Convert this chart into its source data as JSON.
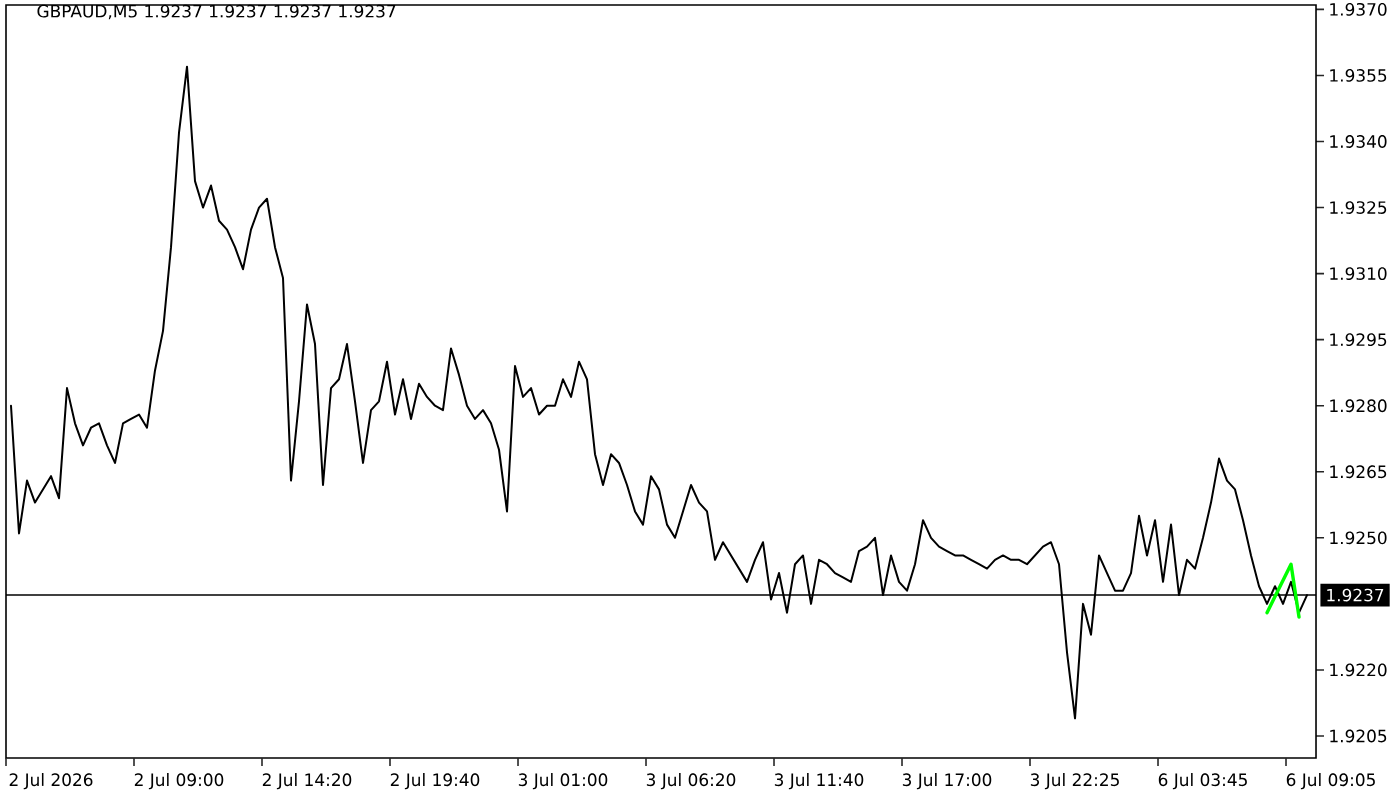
{
  "chart_data": {
    "type": "line",
    "title": "GBPAUD,M5  1.9237 1.9237 1.9237 1.9237",
    "categories": [
      null,
      null,
      null,
      null,
      null,
      "2 Jul 2026",
      null,
      null,
      null,
      null,
      null,
      null,
      null,
      null,
      null,
      null,
      null,
      null,
      null,
      null,
      null,
      "2 Jul 09:00",
      null,
      null,
      null,
      null,
      null,
      null,
      null,
      null,
      null,
      null,
      null,
      null,
      null,
      null,
      null,
      "2 Jul 14:20",
      null,
      null,
      null,
      null,
      null,
      null,
      null,
      null,
      null,
      null,
      null,
      null,
      null,
      null,
      null,
      "2 Jul 19:40",
      null,
      null,
      null,
      null,
      null,
      null,
      null,
      null,
      null,
      null,
      null,
      null,
      null,
      null,
      null,
      "3 Jul 01:00",
      null,
      null,
      null,
      null,
      null,
      null,
      null,
      null,
      null,
      null,
      null,
      null,
      null,
      null,
      null,
      "3 Jul 06:20",
      null,
      null,
      null,
      null,
      null,
      null,
      null,
      null,
      null,
      null,
      null,
      null,
      null,
      null,
      null,
      "3 Jul 11:40",
      null,
      null,
      null,
      null,
      null,
      null,
      null,
      null,
      null,
      null,
      null,
      null,
      null,
      null,
      null,
      "3 Jul 17:00",
      null,
      null,
      null,
      null,
      null,
      null,
      null,
      null,
      null,
      null,
      null,
      null,
      null,
      null,
      null,
      "3 Jul 22:25",
      null,
      null,
      null,
      null,
      null,
      null,
      null,
      null,
      null,
      null,
      null,
      null,
      null,
      null,
      null,
      "6 Jul 03:45",
      null,
      null,
      null,
      null,
      null,
      null,
      null,
      null,
      null,
      null,
      null,
      null,
      null,
      null,
      null,
      "6 Jul 09:05"
    ],
    "ylim": [
      1.92,
      1.9371
    ],
    "yticks": [
      {
        "value": 1.937,
        "label": "1.9370"
      },
      1.9355,
      {
        "value": 1.934,
        "label": "1.9340"
      },
      1.9325,
      {
        "value": 1.931,
        "label": "1.9310"
      },
      1.9295,
      {
        "value": 1.928,
        "label": "1.9280"
      },
      1.9265,
      {
        "value": 1.925,
        "label": "1.9250"
      },
      {
        "value": 1.922,
        "label": "1.9220"
      },
      1.9205
    ],
    "series": [
      {
        "color": "#000000",
        "values": [
          1.928,
          1.9251,
          1.9263,
          1.9258,
          1.9261,
          1.9264,
          1.9259,
          1.9284,
          1.9276,
          1.9271,
          1.9275,
          1.9276,
          1.9271,
          1.9267,
          1.9276,
          1.9277,
          1.9278,
          1.9275,
          1.9288,
          1.9297,
          1.9316,
          1.9342,
          1.9357,
          1.9331,
          1.9325,
          1.933,
          1.9322,
          1.932,
          1.9316,
          1.9311,
          1.932,
          1.9325,
          1.9327,
          1.9316,
          1.9309,
          1.9263,
          1.9281,
          1.9303,
          1.9294,
          1.9262,
          1.9284,
          1.9286,
          1.9294,
          1.9281,
          1.9267,
          1.9279,
          1.9281,
          1.929,
          1.9278,
          1.9286,
          1.9277,
          1.9285,
          1.9282,
          1.928,
          1.9279,
          1.9293,
          1.9287,
          1.928,
          1.9277,
          1.9279,
          1.9276,
          1.927,
          1.9256,
          1.9289,
          1.9282,
          1.9284,
          1.9278,
          1.928,
          1.928,
          1.9286,
          1.9282,
          1.929,
          1.9286,
          1.9269,
          1.9262,
          1.9269,
          1.9267,
          1.9262,
          1.9256,
          1.9253,
          1.9264,
          1.9261,
          1.9253,
          1.925,
          1.9256,
          1.9262,
          1.9258,
          1.9256,
          1.9245,
          1.9249,
          1.9246,
          1.9243,
          1.924,
          1.9245,
          1.9249,
          1.9236,
          1.9242,
          1.9233,
          1.9244,
          1.9246,
          1.9235,
          1.9245,
          1.9244,
          1.9242,
          1.9241,
          1.924,
          1.9247,
          1.9248,
          1.925,
          1.9237,
          1.9246,
          1.924,
          1.9238,
          1.9244,
          1.9254,
          1.925,
          1.9248,
          1.9247,
          1.9246,
          1.9246,
          1.9245,
          1.9244,
          1.9243,
          1.9245,
          1.9246,
          1.9245,
          1.9245,
          1.9244,
          1.9246,
          1.9248,
          1.9249,
          1.9244,
          1.9224,
          1.9209,
          1.9235,
          1.9228,
          1.9246,
          1.9242,
          1.9238,
          1.9238,
          1.9242,
          1.9255,
          1.9246,
          1.9254,
          1.924,
          1.9253,
          1.9237,
          1.9245,
          1.9243,
          1.925,
          1.9258,
          1.9268,
          1.9263,
          1.9261,
          1.9254,
          1.9246,
          1.9239,
          1.9235,
          1.9239,
          1.9235,
          1.924,
          1.9233,
          1.9237,
          null,
          null,
          null
        ]
      },
      {
        "color": "#00ff00",
        "values": [
          null,
          null,
          null,
          null,
          null,
          null,
          null,
          null,
          null,
          null,
          null,
          null,
          null,
          null,
          null,
          null,
          null,
          null,
          null,
          null,
          null,
          null,
          null,
          null,
          null,
          null,
          null,
          null,
          null,
          null,
          null,
          null,
          null,
          null,
          null,
          null,
          null,
          null,
          null,
          null,
          null,
          null,
          null,
          null,
          null,
          null,
          null,
          null,
          null,
          null,
          null,
          null,
          null,
          null,
          null,
          null,
          null,
          null,
          null,
          null,
          null,
          null,
          null,
          null,
          null,
          null,
          null,
          null,
          null,
          null,
          null,
          null,
          null,
          null,
          null,
          null,
          null,
          null,
          null,
          null,
          null,
          null,
          null,
          null,
          null,
          null,
          null,
          null,
          null,
          null,
          null,
          null,
          null,
          null,
          null,
          null,
          null,
          null,
          null,
          null,
          null,
          null,
          null,
          null,
          null,
          null,
          null,
          null,
          null,
          null,
          null,
          null,
          null,
          null,
          null,
          null,
          null,
          null,
          null,
          null,
          null,
          null,
          null,
          null,
          null,
          null,
          null,
          null,
          null,
          null,
          null,
          null,
          null,
          null,
          null,
          null,
          null,
          null,
          null,
          null,
          null,
          null,
          null,
          null,
          null,
          null,
          null,
          null,
          null,
          null,
          null,
          null,
          null,
          null,
          null,
          null,
          null,
          1.9233,
          null,
          null,
          1.9244,
          1.9232,
          null,
          null,
          null,
          null
        ]
      }
    ],
    "ref_lines": [
      {
        "axis": "y",
        "value": 1.9237,
        "label": "1.9237"
      }
    ]
  }
}
